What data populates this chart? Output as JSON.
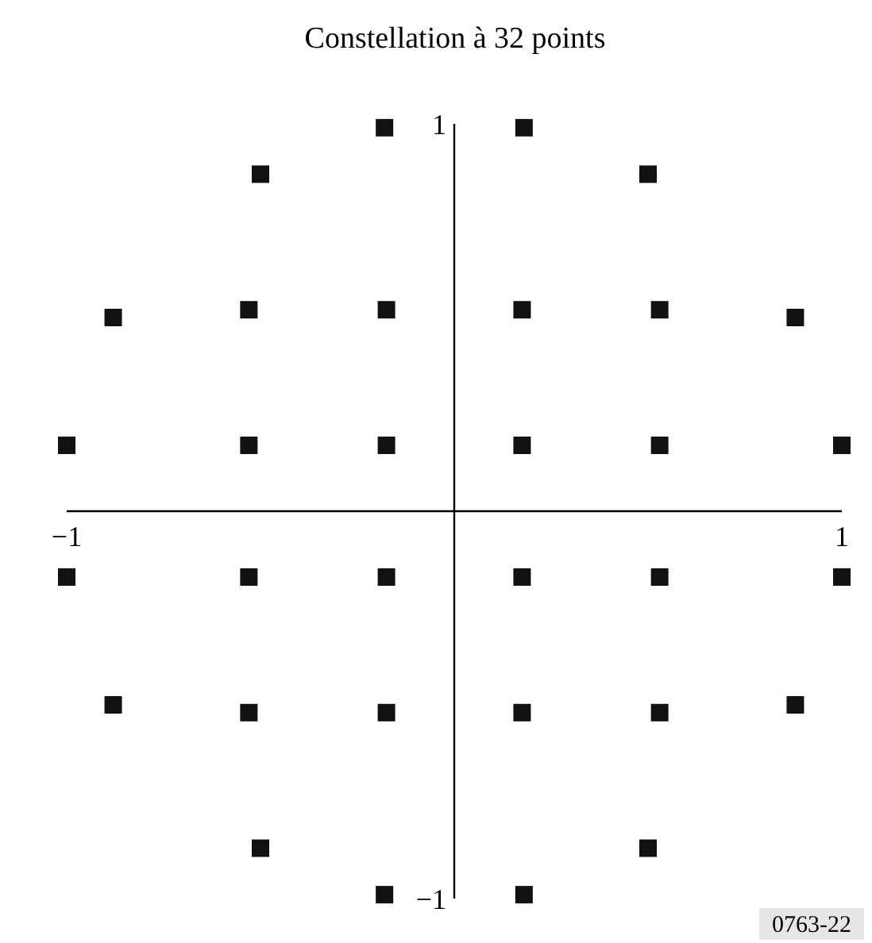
{
  "chart_data": {
    "type": "scatter",
    "title": "Constellation à 32 points",
    "marker": "square",
    "grid": false,
    "xlim": [
      -1,
      1
    ],
    "ylim": [
      -1,
      1
    ],
    "xticks": [
      {
        "value": -1,
        "label": "−1"
      },
      1
    ],
    "yticks": [
      {
        "value": -1,
        "label": "−1"
      },
      1
    ],
    "series": [
      {
        "color": "#111111",
        "x": [
          -0.53,
          -0.175,
          0.175,
          0.53,
          -0.53,
          -0.175,
          0.175,
          0.53,
          -0.53,
          -0.175,
          0.175,
          0.53,
          -0.53,
          -0.175,
          0.175,
          0.53,
          -1.0,
          1.0,
          -1.0,
          1.0,
          -0.88,
          0.88,
          -0.88,
          0.88,
          -0.5,
          0.5,
          -0.5,
          0.5,
          -0.18,
          0.18,
          -0.18,
          0.18
        ],
        "values": [
          0.52,
          0.52,
          0.52,
          0.52,
          0.17,
          0.17,
          0.17,
          0.17,
          -0.17,
          -0.17,
          -0.17,
          -0.17,
          -0.52,
          -0.52,
          -0.52,
          -0.52,
          0.17,
          0.17,
          -0.17,
          -0.17,
          0.5,
          0.5,
          -0.5,
          -0.5,
          0.87,
          0.87,
          -0.87,
          -0.87,
          0.99,
          0.99,
          -0.99,
          -0.99
        ]
      }
    ],
    "annotations": [
      "0763-22"
    ]
  }
}
